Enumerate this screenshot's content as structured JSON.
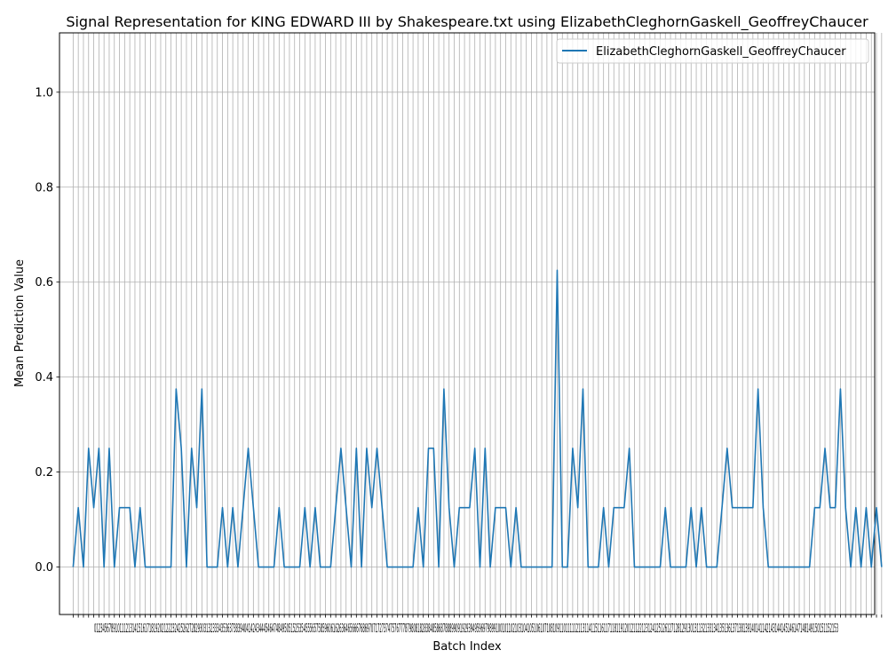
{
  "chart_data": {
    "type": "line",
    "title": "Signal Representation for KING EDWARD III by Shakespeare.txt using ElizabethCleghornGaskell_GeoffreyChaucer",
    "xlabel": "Batch Index",
    "ylabel": "Mean Prediction Value",
    "xlim": [
      -2.65,
      155.65
    ],
    "ylim": [
      -0.1,
      1.125
    ],
    "yticks": [
      0.0,
      0.2,
      0.4,
      0.6,
      0.8,
      1.0
    ],
    "ytick_labels": [
      "0.0",
      "0.2",
      "0.4",
      "0.6",
      "0.8",
      "1.0"
    ],
    "xtick_labels_text": "0123456789101112131415161718192021222324252627282930313233343536373839404142434445464748495051525354555657585960616263646566676869707172737475767778798081828384858687888990919293949596979899100101102103104105106107108109110111112113114115116117118119120121122123124125126127128129130131132133134135136137138139140141142143144145146147148149150151152153",
    "grid": true,
    "legend_position": "top-right",
    "series": [
      {
        "name": "ElizabethCleghornGaskell_GeoffreyChaucer",
        "color": "#1f77b4",
        "x_start": 0,
        "values": [
          0,
          0.125,
          0,
          0.25,
          0.125,
          0.25,
          0,
          0.25,
          0,
          0.125,
          0.125,
          0.125,
          0,
          0.125,
          0,
          0,
          0,
          0,
          0,
          0,
          0.375,
          0.25,
          0,
          0.25,
          0.125,
          0.375,
          0,
          0,
          0,
          0.125,
          0,
          0.125,
          0,
          0.125,
          0.25,
          0.125,
          0,
          0,
          0,
          0,
          0.125,
          0,
          0,
          0,
          0,
          0.125,
          0,
          0.125,
          0,
          0,
          0,
          0.125,
          0.25,
          0.125,
          0,
          0.25,
          0,
          0.25,
          0.125,
          0.25,
          0.125,
          0,
          0,
          0,
          0,
          0,
          0,
          0.125,
          0,
          0.25,
          0.25,
          0,
          0.375,
          0.125,
          0,
          0.125,
          0.125,
          0.125,
          0.25,
          0,
          0.25,
          0,
          0.125,
          0.125,
          0.125,
          0,
          0.125,
          0,
          0,
          0,
          0,
          0,
          0,
          0,
          0.625,
          0,
          0,
          0.25,
          0.125,
          0.375,
          0,
          0,
          0,
          0.125,
          0,
          0.125,
          0.125,
          0.125,
          0.25,
          0,
          0,
          0,
          0,
          0,
          0,
          0.125,
          0,
          0,
          0,
          0,
          0.125,
          0,
          0.125,
          0,
          0,
          0,
          0.125,
          0.25,
          0.125,
          0.125,
          0.125,
          0.125,
          0.125,
          0.375,
          0.125,
          0,
          0,
          0,
          0,
          0,
          0,
          0,
          0,
          0,
          0.125,
          0.125,
          0.25,
          0.125,
          0.125,
          0.375,
          0.125,
          0,
          0.125,
          0,
          0.125,
          0,
          0.125,
          0
        ]
      }
    ]
  }
}
